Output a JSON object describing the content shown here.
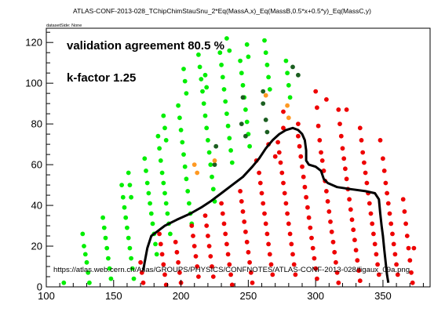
{
  "chart_data": {
    "type": "scatter",
    "title": "ATLAS-CONF-2013-028_TChipChimStauSnu_2*Eq(MassA,x)_Eq(MassB,0.5*x+0.5*y)_Eq(MassC,y)",
    "subtitle": "datasetSide: None",
    "annotations": {
      "agreement": "validation agreement 80.5 %",
      "kfactor": "k-factor 1.25",
      "url": "https://atlas.web.cern.ch/Atlas/GROUPS/PHYSICS/CONFNOTES/ATLAS-CONF-2013-028/figaux_09a.png"
    },
    "xlabel": "",
    "ylabel": "",
    "xlim": [
      100,
      385
    ],
    "ylim": [
      0,
      127
    ],
    "xticks": [
      100,
      150,
      200,
      250,
      300,
      350
    ],
    "yticks": [
      0,
      20,
      40,
      60,
      80,
      100,
      120
    ],
    "grid": false,
    "colors": {
      "green": "#00ee00",
      "red": "#ee0000",
      "darkgreen": "#1b5e20",
      "orange": "#ff9922",
      "contour": "#000000"
    },
    "series": [
      {
        "key": "green",
        "points": [
          [
            113,
            2
          ],
          [
            127,
            26
          ],
          [
            128,
            20
          ],
          [
            129,
            16
          ],
          [
            130,
            12
          ],
          [
            131,
            7
          ],
          [
            132,
            2
          ],
          [
            142,
            34
          ],
          [
            143,
            29
          ],
          [
            144,
            24
          ],
          [
            145,
            19
          ],
          [
            146,
            14
          ],
          [
            147,
            9
          ],
          [
            148,
            4
          ],
          [
            156,
            50
          ],
          [
            157,
            44
          ],
          [
            158,
            39
          ],
          [
            159,
            34
          ],
          [
            160,
            29
          ],
          [
            161,
            24
          ],
          [
            162,
            19
          ],
          [
            163,
            14
          ],
          [
            164,
            9
          ],
          [
            165,
            4
          ],
          [
            161,
            56
          ],
          [
            162,
            50
          ],
          [
            163,
            44
          ],
          [
            173,
            63
          ],
          [
            174,
            57
          ],
          [
            175,
            51
          ],
          [
            176,
            46
          ],
          [
            177,
            41
          ],
          [
            178,
            36
          ],
          [
            179,
            31
          ],
          [
            180,
            26
          ],
          [
            181,
            21
          ],
          [
            182,
            16
          ],
          [
            183,
            74
          ],
          [
            184,
            68
          ],
          [
            185,
            62
          ],
          [
            186,
            56
          ],
          [
            187,
            51
          ],
          [
            188,
            46
          ],
          [
            189,
            41
          ],
          [
            190,
            36
          ],
          [
            191,
            31
          ],
          [
            192,
            26
          ],
          [
            187,
            84
          ],
          [
            188,
            78
          ],
          [
            189,
            72
          ],
          [
            198,
            89
          ],
          [
            199,
            83
          ],
          [
            200,
            77
          ],
          [
            201,
            71
          ],
          [
            202,
            65
          ],
          [
            203,
            59
          ],
          [
            204,
            53
          ],
          [
            205,
            47
          ],
          [
            206,
            41
          ],
          [
            207,
            36
          ],
          [
            208,
            31
          ],
          [
            202,
            107
          ],
          [
            203,
            101
          ],
          [
            204,
            95
          ],
          [
            213,
            114
          ],
          [
            214,
            108
          ],
          [
            215,
            102
          ],
          [
            216,
            96
          ],
          [
            217,
            90
          ],
          [
            218,
            84
          ],
          [
            219,
            78
          ],
          [
            220,
            72
          ],
          [
            221,
            66
          ],
          [
            222,
            60
          ],
          [
            223,
            54
          ],
          [
            224,
            48
          ],
          [
            225,
            42
          ],
          [
            218,
            104
          ],
          [
            219,
            98
          ],
          [
            229,
            115
          ],
          [
            230,
            109
          ],
          [
            231,
            103
          ],
          [
            232,
            97
          ],
          [
            233,
            91
          ],
          [
            234,
            85
          ],
          [
            235,
            79
          ],
          [
            236,
            73
          ],
          [
            237,
            67
          ],
          [
            238,
            61
          ],
          [
            234,
            122
          ],
          [
            236,
            116
          ],
          [
            244,
            111
          ],
          [
            245,
            105
          ],
          [
            246,
            99
          ],
          [
            247,
            93
          ],
          [
            248,
            87
          ],
          [
            249,
            81
          ],
          [
            250,
            75
          ],
          [
            251,
            69
          ],
          [
            249,
            119
          ],
          [
            250,
            113
          ],
          [
            262,
            121
          ],
          [
            263,
            115
          ],
          [
            264,
            109
          ],
          [
            265,
            103
          ],
          [
            266,
            97
          ],
          [
            278,
            111
          ],
          [
            279,
            105
          ],
          [
            280,
            99
          ],
          [
            281,
            93
          ]
        ]
      },
      {
        "key": "darkgreen",
        "points": [
          [
            225,
            60
          ],
          [
            226,
            69
          ],
          [
            245,
            80
          ],
          [
            246,
            93
          ],
          [
            248,
            74
          ],
          [
            261,
            90
          ],
          [
            261,
            96
          ],
          [
            263,
            82
          ],
          [
            264,
            76
          ],
          [
            283,
            108
          ],
          [
            287,
            104
          ]
        ]
      },
      {
        "key": "orange",
        "points": [
          [
            210,
            60
          ],
          [
            212,
            56
          ],
          [
            225,
            62
          ],
          [
            263,
            94
          ],
          [
            279,
            89
          ],
          [
            280,
            83
          ]
        ]
      },
      {
        "key": "red",
        "points": [
          [
            170,
            12
          ],
          [
            171,
            7
          ],
          [
            172,
            2
          ],
          [
            184,
            26
          ],
          [
            185,
            21
          ],
          [
            186,
            16
          ],
          [
            187,
            11
          ],
          [
            188,
            6
          ],
          [
            189,
            1
          ],
          [
            196,
            22
          ],
          [
            197,
            17
          ],
          [
            198,
            12
          ],
          [
            199,
            7
          ],
          [
            200,
            2
          ],
          [
            208,
            30
          ],
          [
            209,
            25
          ],
          [
            210,
            20
          ],
          [
            211,
            15
          ],
          [
            212,
            10
          ],
          [
            213,
            5
          ],
          [
            218,
            35
          ],
          [
            219,
            30
          ],
          [
            220,
            25
          ],
          [
            221,
            20
          ],
          [
            222,
            15
          ],
          [
            223,
            10
          ],
          [
            224,
            5
          ],
          [
            230,
            41
          ],
          [
            231,
            36
          ],
          [
            232,
            31
          ],
          [
            233,
            26
          ],
          [
            234,
            21
          ],
          [
            235,
            16
          ],
          [
            236,
            11
          ],
          [
            237,
            6
          ],
          [
            238,
            1
          ],
          [
            244,
            47
          ],
          [
            245,
            42
          ],
          [
            246,
            37
          ],
          [
            247,
            32
          ],
          [
            248,
            27
          ],
          [
            249,
            22
          ],
          [
            250,
            17
          ],
          [
            251,
            12
          ],
          [
            252,
            7
          ],
          [
            253,
            2
          ],
          [
            258,
            56
          ],
          [
            259,
            51
          ],
          [
            260,
            46
          ],
          [
            261,
            41
          ],
          [
            262,
            36
          ],
          [
            263,
            31
          ],
          [
            264,
            26
          ],
          [
            265,
            21
          ],
          [
            266,
            16
          ],
          [
            267,
            11
          ],
          [
            268,
            6
          ],
          [
            256,
            62
          ],
          [
            265,
            70
          ],
          [
            270,
            64
          ],
          [
            272,
            71
          ],
          [
            273,
            66
          ],
          [
            274,
            61
          ],
          [
            275,
            56
          ],
          [
            276,
            51
          ],
          [
            277,
            46
          ],
          [
            278,
            41
          ],
          [
            279,
            36
          ],
          [
            280,
            31
          ],
          [
            281,
            26
          ],
          [
            282,
            21
          ],
          [
            283,
            16
          ],
          [
            284,
            11
          ],
          [
            285,
            6
          ],
          [
            276,
            86
          ],
          [
            276,
            78
          ],
          [
            287,
            80
          ],
          [
            287,
            74
          ],
          [
            288,
            69
          ],
          [
            289,
            64
          ],
          [
            290,
            59
          ],
          [
            291,
            54
          ],
          [
            292,
            49
          ],
          [
            293,
            44
          ],
          [
            294,
            39
          ],
          [
            295,
            34
          ],
          [
            296,
            29
          ],
          [
            297,
            24
          ],
          [
            298,
            19
          ],
          [
            299,
            14
          ],
          [
            300,
            9
          ],
          [
            301,
            4
          ],
          [
            300,
            96
          ],
          [
            301,
            88
          ],
          [
            302,
            79
          ],
          [
            303,
            72
          ],
          [
            304,
            66
          ],
          [
            305,
            62
          ],
          [
            306,
            57
          ],
          [
            307,
            52
          ],
          [
            308,
            47
          ],
          [
            309,
            42
          ],
          [
            310,
            37
          ],
          [
            311,
            32
          ],
          [
            312,
            27
          ],
          [
            313,
            22
          ],
          [
            314,
            17
          ],
          [
            315,
            12
          ],
          [
            316,
            7
          ],
          [
            317,
            2
          ],
          [
            308,
            92
          ],
          [
            317,
            87
          ],
          [
            318,
            80
          ],
          [
            319,
            74
          ],
          [
            320,
            68
          ],
          [
            321,
            63
          ],
          [
            322,
            58
          ],
          [
            323,
            53
          ],
          [
            324,
            48
          ],
          [
            325,
            43
          ],
          [
            326,
            38
          ],
          [
            327,
            33
          ],
          [
            328,
            28
          ],
          [
            329,
            23
          ],
          [
            330,
            18
          ],
          [
            331,
            13
          ],
          [
            332,
            8
          ],
          [
            333,
            3
          ],
          [
            323,
            87
          ],
          [
            333,
            78
          ],
          [
            334,
            72
          ],
          [
            335,
            66
          ],
          [
            336,
            61
          ],
          [
            337,
            56
          ],
          [
            338,
            51
          ],
          [
            339,
            46
          ],
          [
            340,
            41
          ],
          [
            341,
            36
          ],
          [
            342,
            31
          ],
          [
            343,
            26
          ],
          [
            344,
            21
          ],
          [
            345,
            16
          ],
          [
            346,
            11
          ],
          [
            347,
            6
          ],
          [
            348,
            72
          ],
          [
            350,
            63
          ],
          [
            351,
            57
          ],
          [
            352,
            51
          ],
          [
            353,
            46
          ],
          [
            354,
            41
          ],
          [
            355,
            36
          ],
          [
            356,
            31
          ],
          [
            357,
            26
          ],
          [
            358,
            21
          ],
          [
            359,
            16
          ],
          [
            360,
            11
          ],
          [
            361,
            6
          ],
          [
            365,
            43
          ],
          [
            366,
            37
          ],
          [
            367,
            31
          ],
          [
            368,
            25
          ],
          [
            369,
            19
          ],
          [
            370,
            13
          ],
          [
            371,
            7
          ],
          [
            372,
            2
          ],
          [
            373,
            19
          ]
        ]
      }
    ],
    "contour": [
      [
        172,
        8
      ],
      [
        173,
        12
      ],
      [
        175,
        19
      ],
      [
        178,
        25
      ],
      [
        182,
        27
      ],
      [
        188,
        30
      ],
      [
        197,
        33
      ],
      [
        207,
        36
      ],
      [
        215,
        39
      ],
      [
        222,
        42
      ],
      [
        230,
        46
      ],
      [
        238,
        50
      ],
      [
        246,
        54
      ],
      [
        253,
        59
      ],
      [
        258,
        63
      ],
      [
        263,
        68
      ],
      [
        268,
        72
      ],
      [
        273,
        75
      ],
      [
        278,
        77
      ],
      [
        283,
        78
      ],
      [
        287,
        77
      ],
      [
        290,
        75
      ],
      [
        292,
        72
      ],
      [
        293,
        67
      ],
      [
        293,
        62
      ],
      [
        295,
        60
      ],
      [
        300,
        59
      ],
      [
        304,
        57
      ],
      [
        306,
        53
      ],
      [
        309,
        51
      ],
      [
        316,
        49
      ],
      [
        326,
        48
      ],
      [
        337,
        47
      ],
      [
        344,
        46
      ],
      [
        347,
        43
      ],
      [
        348,
        36
      ],
      [
        349,
        30
      ],
      [
        350,
        25
      ],
      [
        351,
        18
      ],
      [
        352,
        12
      ],
      [
        353,
        6
      ],
      [
        354,
        2
      ]
    ]
  }
}
